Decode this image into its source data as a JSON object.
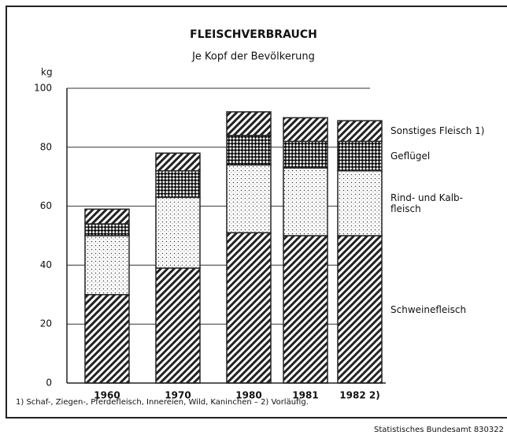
{
  "chart_data": {
    "type": "stacked_bar",
    "title": "FLEISCHVERBRAUCH",
    "subtitle": "Je Kopf der Bevölkerung",
    "y_label": "kg",
    "categories": [
      "1960",
      "1970",
      "1980",
      "1981",
      "1982 2)"
    ],
    "series": [
      {
        "name": "Schweinefleisch",
        "pattern": "hatch",
        "color": "#222",
        "values": [
          30,
          39,
          51,
          50,
          50
        ]
      },
      {
        "name": "Rind- und Kalb-\nfleisch",
        "pattern": "dots",
        "color": "#222",
        "values": [
          20,
          24,
          23,
          23,
          22
        ]
      },
      {
        "name": "Geflügel",
        "pattern": "check",
        "color": "#222",
        "values": [
          4,
          9,
          10,
          9,
          10
        ]
      },
      {
        "name": "Sonstiges Fleisch 1)",
        "pattern": "hatch",
        "color": "#222",
        "values": [
          5,
          6,
          8,
          8,
          7
        ]
      }
    ],
    "ylim": [
      0,
      100
    ],
    "yticks": [
      0,
      20,
      40,
      60,
      80,
      100
    ],
    "grid": true,
    "footnote": "1) Schaf-, Ziegen-, Pferdefleisch, Innereien, Wild, Kaninchen – 2) Vorläufig.",
    "source": "Statistisches Bundesamt 830322"
  }
}
